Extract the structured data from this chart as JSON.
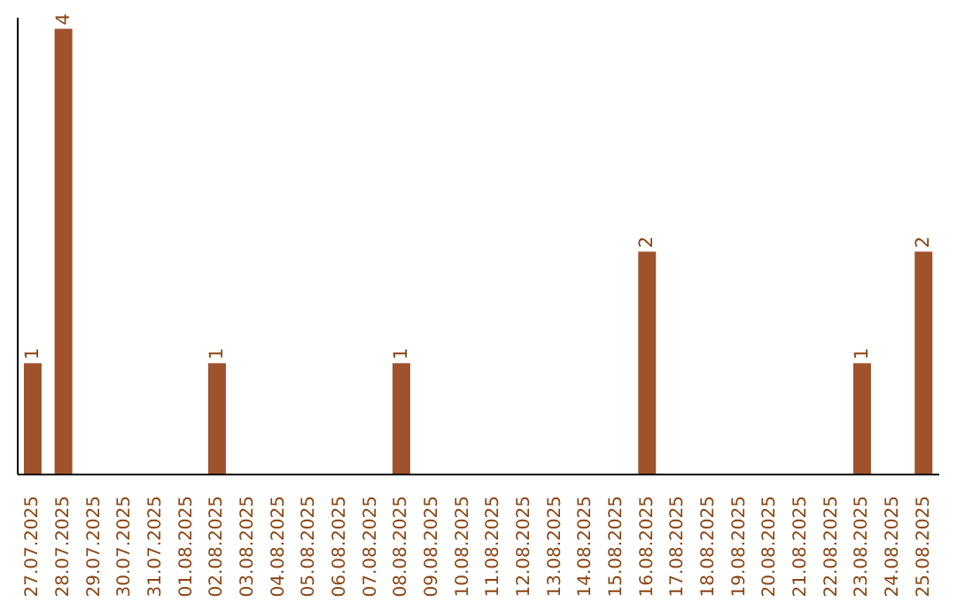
{
  "chart_data": {
    "type": "bar",
    "categories": [
      "27.07.2025",
      "28.07.2025",
      "29.07.2025",
      "30.07.2025",
      "31.07.2025",
      "01.08.2025",
      "02.08.2025",
      "03.08.2025",
      "04.08.2025",
      "05.08.2025",
      "06.08.2025",
      "07.08.2025",
      "08.08.2025",
      "09.08.2025",
      "10.08.2025",
      "11.08.2025",
      "12.08.2025",
      "13.08.2025",
      "14.08.2025",
      "15.08.2025",
      "16.08.2025",
      "17.08.2025",
      "18.08.2025",
      "19.08.2025",
      "20.08.2025",
      "21.08.2025",
      "22.08.2025",
      "23.08.2025",
      "24.08.2025",
      "25.08.2025"
    ],
    "values": [
      1,
      4,
      0,
      0,
      0,
      0,
      1,
      0,
      0,
      0,
      0,
      0,
      1,
      0,
      0,
      0,
      0,
      0,
      0,
      0,
      2,
      0,
      0,
      0,
      0,
      0,
      0,
      1,
      0,
      2
    ],
    "value_labels": [
      "1",
      "4",
      null,
      null,
      null,
      null,
      "1",
      null,
      null,
      null,
      null,
      null,
      "1",
      null,
      null,
      null,
      null,
      null,
      null,
      null,
      "2",
      null,
      null,
      null,
      null,
      null,
      null,
      "1",
      null,
      "2"
    ],
    "color": "#a0522d",
    "ylim": [
      0,
      4.1
    ],
    "tick_labels": "x",
    "grid": false,
    "legend": false
  }
}
